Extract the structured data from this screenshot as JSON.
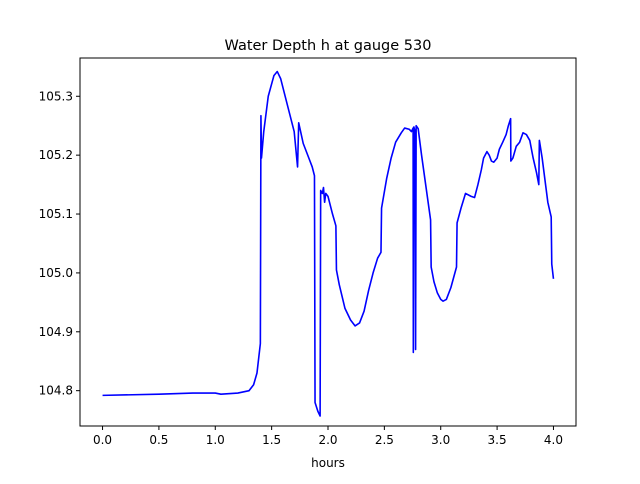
{
  "chart_data": {
    "type": "line",
    "title": "Water Depth h at gauge 530",
    "xlabel": "hours",
    "ylabel": "",
    "xlim": [
      -0.2,
      4.2
    ],
    "ylim": [
      104.74,
      105.365
    ],
    "xticks": [
      0.0,
      0.5,
      1.0,
      1.5,
      2.0,
      2.5,
      3.0,
      3.5,
      4.0
    ],
    "xtick_labels": [
      "0.0",
      "0.5",
      "1.0",
      "1.5",
      "2.0",
      "2.5",
      "3.0",
      "3.5",
      "4.0"
    ],
    "yticks": [
      104.8,
      104.9,
      105.0,
      105.1,
      105.2,
      105.3
    ],
    "ytick_labels": [
      "104.8",
      "104.9",
      "105.0",
      "105.1",
      "105.2",
      "105.3"
    ],
    "grid": false,
    "legend": "none",
    "series": [
      {
        "color": "#0000ff",
        "points": [
          [
            0.0,
            104.792
          ],
          [
            0.5,
            104.794
          ],
          [
            0.8,
            104.796
          ],
          [
            1.0,
            104.796
          ],
          [
            1.05,
            104.794
          ],
          [
            1.2,
            104.796
          ],
          [
            1.3,
            104.8
          ],
          [
            1.34,
            104.81
          ],
          [
            1.37,
            104.83
          ],
          [
            1.4,
            104.88
          ],
          [
            1.405,
            105.267
          ],
          [
            1.41,
            105.195
          ],
          [
            1.43,
            105.24
          ],
          [
            1.47,
            105.3
          ],
          [
            1.52,
            105.335
          ],
          [
            1.55,
            105.342
          ],
          [
            1.58,
            105.33
          ],
          [
            1.62,
            105.3
          ],
          [
            1.66,
            105.27
          ],
          [
            1.7,
            105.24
          ],
          [
            1.73,
            105.18
          ],
          [
            1.74,
            105.255
          ],
          [
            1.78,
            105.22
          ],
          [
            1.82,
            105.2
          ],
          [
            1.86,
            105.18
          ],
          [
            1.88,
            105.165
          ],
          [
            1.885,
            104.78
          ],
          [
            1.91,
            104.765
          ],
          [
            1.93,
            104.757
          ],
          [
            1.935,
            105.14
          ],
          [
            1.95,
            105.135
          ],
          [
            1.96,
            105.145
          ],
          [
            1.97,
            105.12
          ],
          [
            1.98,
            105.135
          ],
          [
            2.0,
            105.13
          ],
          [
            2.04,
            105.1
          ],
          [
            2.07,
            105.08
          ],
          [
            2.075,
            105.005
          ],
          [
            2.1,
            104.98
          ],
          [
            2.15,
            104.94
          ],
          [
            2.2,
            104.92
          ],
          [
            2.24,
            104.91
          ],
          [
            2.28,
            104.915
          ],
          [
            2.32,
            104.935
          ],
          [
            2.36,
            104.97
          ],
          [
            2.4,
            105.0
          ],
          [
            2.44,
            105.025
          ],
          [
            2.47,
            105.035
          ],
          [
            2.475,
            105.11
          ],
          [
            2.52,
            105.16
          ],
          [
            2.56,
            105.195
          ],
          [
            2.6,
            105.222
          ],
          [
            2.65,
            105.238
          ],
          [
            2.68,
            105.246
          ],
          [
            2.72,
            105.244
          ],
          [
            2.74,
            105.24
          ],
          [
            2.755,
            105.246
          ],
          [
            2.757,
            104.865
          ],
          [
            2.762,
            105.248
          ],
          [
            2.772,
            105.24
          ],
          [
            2.777,
            104.87
          ],
          [
            2.782,
            105.25
          ],
          [
            2.8,
            105.245
          ],
          [
            2.83,
            105.2
          ],
          [
            2.87,
            105.145
          ],
          [
            2.91,
            105.09
          ],
          [
            2.915,
            105.01
          ],
          [
            2.94,
            104.985
          ],
          [
            2.97,
            104.966
          ],
          [
            3.0,
            104.955
          ],
          [
            3.02,
            104.952
          ],
          [
            3.05,
            104.955
          ],
          [
            3.09,
            104.975
          ],
          [
            3.14,
            105.01
          ],
          [
            3.145,
            105.085
          ],
          [
            3.18,
            105.11
          ],
          [
            3.22,
            105.135
          ],
          [
            3.27,
            105.13
          ],
          [
            3.3,
            105.128
          ],
          [
            3.33,
            105.15
          ],
          [
            3.36,
            105.175
          ],
          [
            3.38,
            105.195
          ],
          [
            3.41,
            105.206
          ],
          [
            3.43,
            105.2
          ],
          [
            3.45,
            105.19
          ],
          [
            3.47,
            105.188
          ],
          [
            3.5,
            105.195
          ],
          [
            3.52,
            105.21
          ],
          [
            3.55,
            105.222
          ],
          [
            3.58,
            105.235
          ],
          [
            3.6,
            105.25
          ],
          [
            3.62,
            105.262
          ],
          [
            3.622,
            105.19
          ],
          [
            3.64,
            105.195
          ],
          [
            3.67,
            105.215
          ],
          [
            3.7,
            105.222
          ],
          [
            3.73,
            105.238
          ],
          [
            3.76,
            105.235
          ],
          [
            3.79,
            105.225
          ],
          [
            3.82,
            105.195
          ],
          [
            3.85,
            105.17
          ],
          [
            3.87,
            105.15
          ],
          [
            3.875,
            105.225
          ],
          [
            3.9,
            105.195
          ],
          [
            3.93,
            105.15
          ],
          [
            3.95,
            105.12
          ],
          [
            3.98,
            105.095
          ],
          [
            3.985,
            105.015
          ],
          [
            4.0,
            104.99
          ]
        ]
      }
    ]
  }
}
